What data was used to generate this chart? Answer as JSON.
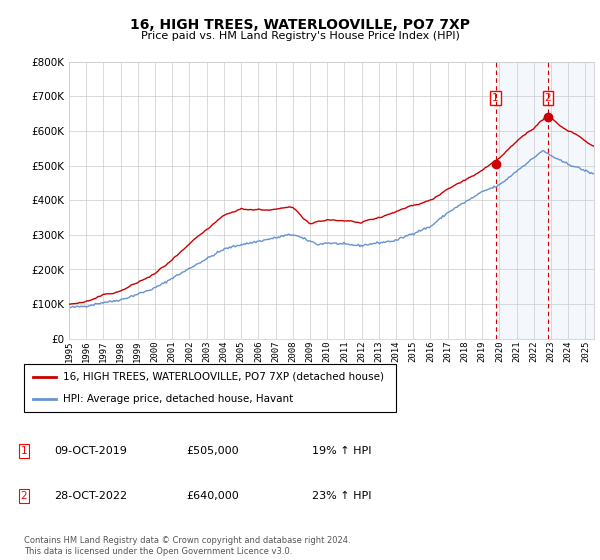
{
  "title": "16, HIGH TREES, WATERLOOVILLE, PO7 7XP",
  "subtitle": "Price paid vs. HM Land Registry's House Price Index (HPI)",
  "legend_line1": "16, HIGH TREES, WATERLOOVILLE, PO7 7XP (detached house)",
  "legend_line2": "HPI: Average price, detached house, Havant",
  "sale1_date": "09-OCT-2019",
  "sale1_price": 505000,
  "sale1_label": "19% ↑ HPI",
  "sale2_date": "28-OCT-2022",
  "sale2_price": 640000,
  "sale2_label": "23% ↑ HPI",
  "footer": "Contains HM Land Registry data © Crown copyright and database right 2024.\nThis data is licensed under the Open Government Licence v3.0.",
  "red_color": "#cc0000",
  "blue_color": "#5588cc",
  "shade_color": "#ddeeff",
  "dashed_color": "#cc0000",
  "ylim": [
    0,
    800000
  ],
  "yticks": [
    0,
    100000,
    200000,
    300000,
    400000,
    500000,
    600000,
    700000,
    800000
  ],
  "sale1_year": 2019.78,
  "sale2_year": 2022.82,
  "label1_price": 700000,
  "label2_price": 700000
}
